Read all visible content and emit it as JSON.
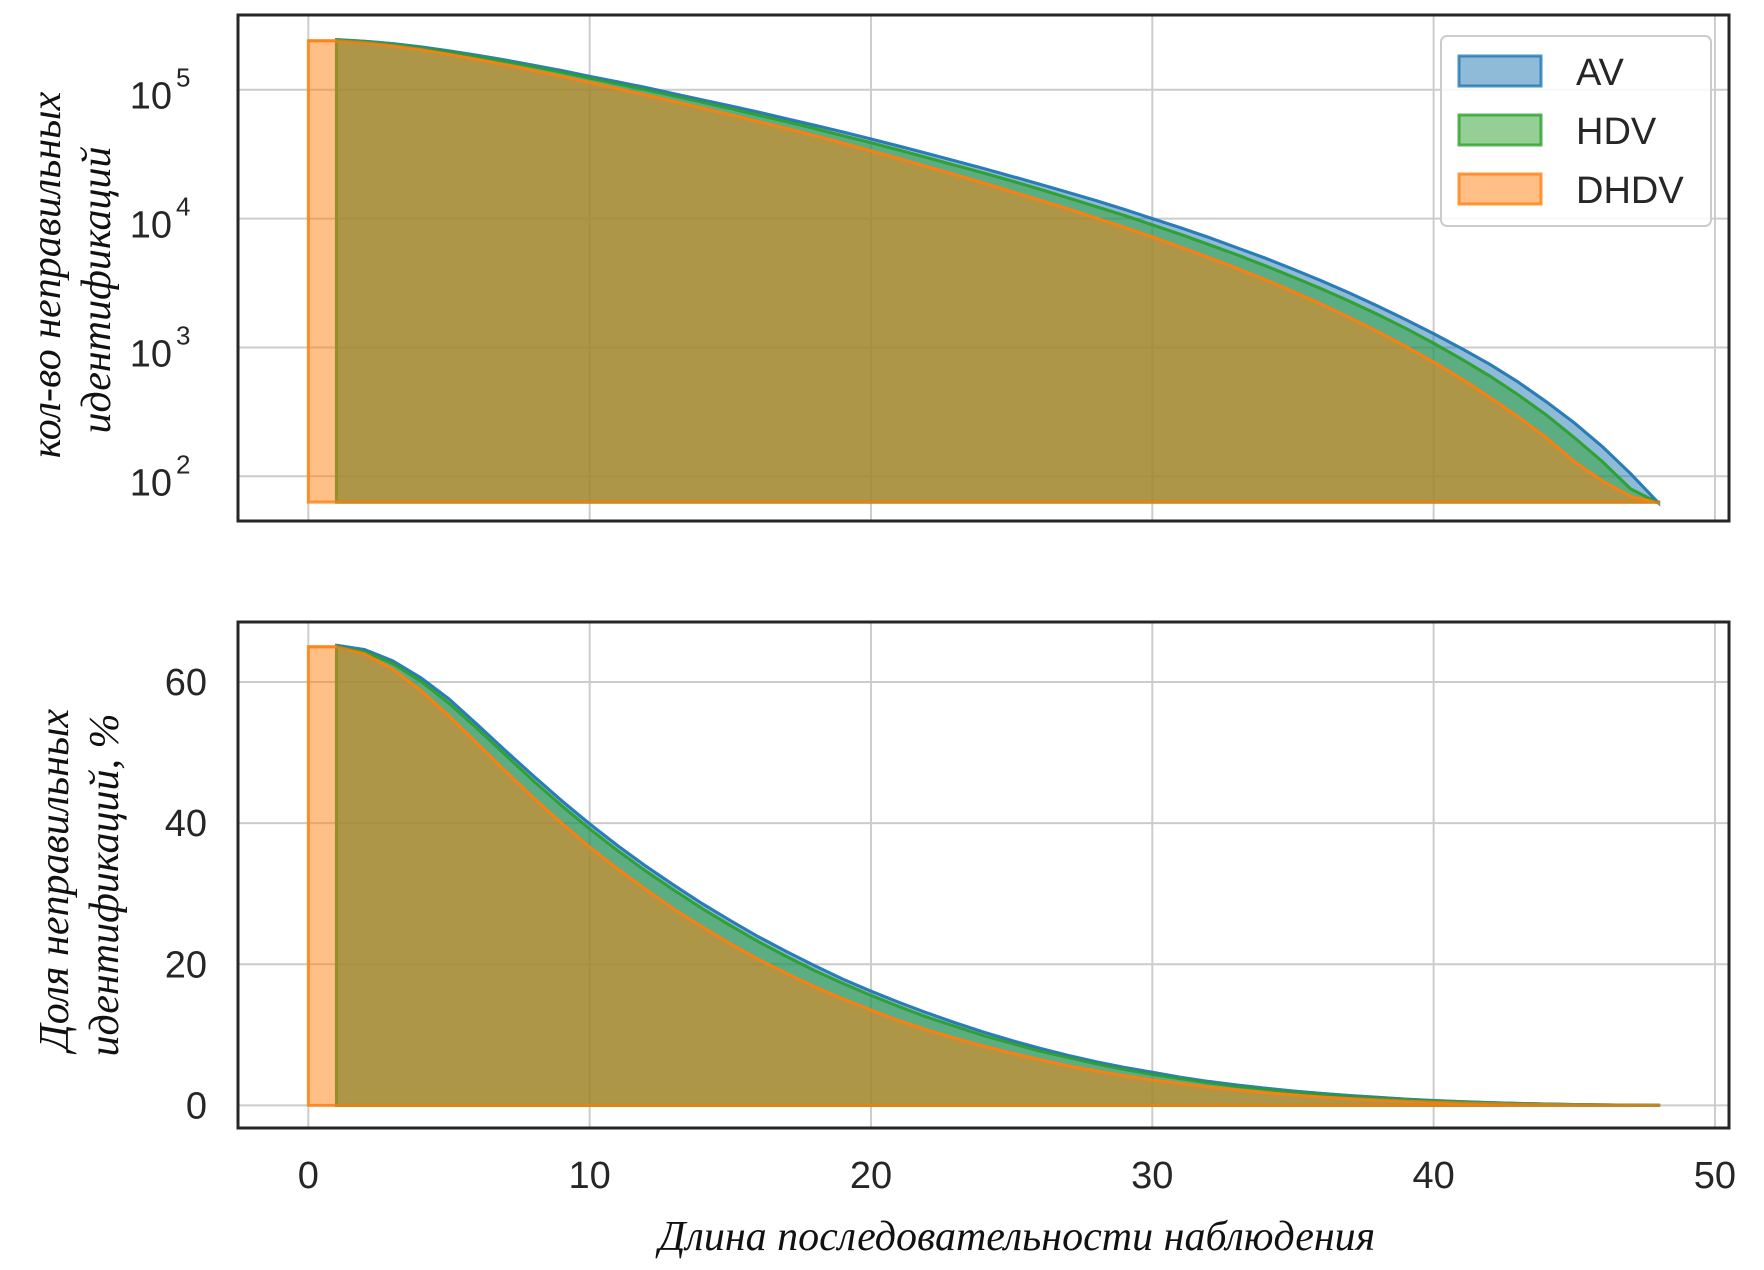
{
  "colors": {
    "AV": "#1f77b4",
    "HDV": "#2ca02c",
    "DHDV": "#ff7f0e",
    "grid": "#cccccc",
    "frame": "#262626"
  },
  "chart_data": [
    {
      "type": "area",
      "scale_y": "log",
      "x": [
        0,
        1,
        2,
        3,
        4,
        5,
        6,
        7,
        8,
        9,
        10,
        11,
        12,
        13,
        14,
        15,
        16,
        17,
        18,
        19,
        20,
        21,
        22,
        23,
        24,
        25,
        26,
        27,
        28,
        29,
        30,
        31,
        32,
        33,
        34,
        35,
        36,
        37,
        38,
        39,
        40,
        41,
        42,
        43,
        44,
        45,
        46,
        47,
        48
      ],
      "series": [
        {
          "name": "AV",
          "x_start": 1,
          "values": [
            null,
            245000,
            238000,
            228000,
            215000,
            200000,
            185000,
            170000,
            155000,
            141000,
            127000,
            115000,
            104000,
            93000,
            83500,
            75000,
            67000,
            59500,
            53000,
            47000,
            41500,
            36500,
            32000,
            28000,
            24500,
            21300,
            18500,
            16000,
            13800,
            11800,
            10000,
            8500,
            7150,
            5950,
            4950,
            4050,
            3300,
            2650,
            2100,
            1650,
            1280,
            980,
            740,
            540,
            380,
            260,
            170,
            105,
            62
          ]
        },
        {
          "name": "HDV",
          "x_start": 1,
          "values": [
            null,
            244000,
            236000,
            226000,
            212000,
            197000,
            181000,
            166000,
            151000,
            137000,
            123000,
            111000,
            100000,
            89500,
            80000,
            71500,
            63500,
            56500,
            50000,
            44000,
            38800,
            34000,
            29700,
            25900,
            22600,
            19600,
            16900,
            14500,
            12400,
            10600,
            8950,
            7550,
            6300,
            5250,
            4320,
            3530,
            2860,
            2290,
            1810,
            1410,
            1080,
            810,
            600,
            430,
            300,
            200,
            130,
            80,
            62
          ]
        },
        {
          "name": "DHDV",
          "x_start": 0,
          "values": [
            240000,
            240000,
            232000,
            220000,
            205000,
            188000,
            172000,
            156000,
            141000,
            127000,
            114000,
            102000,
            91000,
            81000,
            72000,
            64000,
            56500,
            50000,
            44000,
            38500,
            33500,
            29200,
            25300,
            21900,
            18900,
            16200,
            13900,
            11900,
            10100,
            8550,
            7200,
            6000,
            5000,
            4120,
            3370,
            2720,
            2170,
            1710,
            1330,
            1020,
            770,
            570,
            410,
            290,
            200,
            130,
            92,
            70,
            62
          ]
        }
      ],
      "xlim": [
        -2.5,
        50.5
      ],
      "ylim": [
        45,
        380000
      ],
      "xticks": [
        "0",
        "10",
        "20",
        "30",
        "40",
        "50"
      ],
      "yticks": [
        {
          "base": "10",
          "exp": "2",
          "value": 100
        },
        {
          "base": "10",
          "exp": "3",
          "value": 1000
        },
        {
          "base": "10",
          "exp": "4",
          "value": 10000
        },
        {
          "base": "10",
          "exp": "5",
          "value": 100000
        }
      ],
      "ylabel": [
        "кол-во неправильных",
        "идентификаций"
      ],
      "grid": true,
      "legend": {
        "position": "top-right",
        "entries": [
          "AV",
          "HDV",
          "DHDV"
        ]
      }
    },
    {
      "type": "area",
      "scale_y": "linear",
      "x": [
        0,
        1,
        2,
        3,
        4,
        5,
        6,
        7,
        8,
        9,
        10,
        11,
        12,
        13,
        14,
        15,
        16,
        17,
        18,
        19,
        20,
        21,
        22,
        23,
        24,
        25,
        26,
        27,
        28,
        29,
        30,
        31,
        32,
        33,
        34,
        35,
        36,
        37,
        38,
        39,
        40,
        41,
        42,
        43,
        44,
        45,
        46,
        47,
        48
      ],
      "series": [
        {
          "name": "AV",
          "x_start": 1,
          "values": [
            null,
            65.2,
            64.6,
            63.0,
            60.6,
            57.6,
            54.0,
            50.3,
            46.7,
            43.2,
            39.9,
            36.8,
            33.9,
            31.2,
            28.6,
            26.2,
            23.9,
            21.8,
            19.8,
            17.9,
            16.2,
            14.6,
            13.1,
            11.7,
            10.4,
            9.2,
            8.1,
            7.1,
            6.2,
            5.4,
            4.7,
            4.0,
            3.4,
            2.9,
            2.45,
            2.05,
            1.7,
            1.4,
            1.15,
            0.9,
            0.7,
            0.54,
            0.4,
            0.29,
            0.2,
            0.13,
            0.08,
            0.04,
            0.02
          ]
        },
        {
          "name": "HDV",
          "x_start": 1,
          "values": [
            null,
            65.0,
            64.3,
            62.6,
            60.1,
            57.0,
            53.4,
            49.7,
            46.0,
            42.5,
            39.2,
            36.1,
            33.2,
            30.5,
            27.9,
            25.5,
            23.2,
            21.1,
            19.1,
            17.3,
            15.6,
            14.0,
            12.5,
            11.2,
            9.9,
            8.8,
            7.7,
            6.8,
            5.9,
            5.1,
            4.4,
            3.8,
            3.2,
            2.7,
            2.3,
            1.9,
            1.6,
            1.3,
            1.05,
            0.83,
            0.64,
            0.49,
            0.37,
            0.27,
            0.18,
            0.12,
            0.07,
            0.04,
            0.02
          ]
        },
        {
          "name": "DHDV",
          "x_start": 0,
          "values": [
            65.0,
            65.0,
            64.0,
            61.8,
            58.8,
            55.2,
            51.3,
            47.4,
            43.6,
            40.0,
            36.6,
            33.5,
            30.6,
            27.8,
            25.3,
            22.9,
            20.7,
            18.7,
            16.8,
            15.1,
            13.5,
            12.0,
            10.7,
            9.5,
            8.4,
            7.4,
            6.5,
            5.6,
            4.9,
            4.2,
            3.6,
            3.1,
            2.6,
            2.2,
            1.8,
            1.5,
            1.2,
            0.98,
            0.78,
            0.61,
            0.47,
            0.35,
            0.26,
            0.19,
            0.13,
            0.08,
            0.05,
            0.03,
            0.01
          ]
        }
      ],
      "xlim": [
        -2.5,
        50.5
      ],
      "ylim": [
        -3.2,
        68.5
      ],
      "xticks": [
        "0",
        "10",
        "20",
        "30",
        "40",
        "50"
      ],
      "yticks": [
        "0",
        "20",
        "40",
        "60"
      ],
      "ylabel": [
        "Доля неправильных",
        "идентификаций, %"
      ],
      "xlabel": "Длина последовательности наблюдения",
      "grid": true
    }
  ]
}
